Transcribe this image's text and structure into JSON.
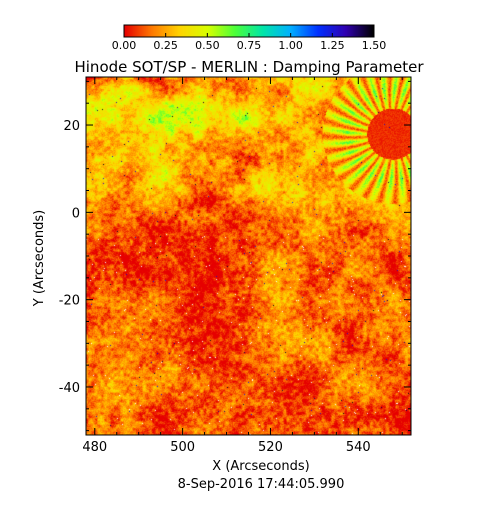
{
  "chart_data": {
    "type": "heatmap",
    "title": "Hinode SOT/SP - MERLIN : Damping Parameter",
    "xlabel": "X (Arcseconds)",
    "ylabel": "Y (Arcseconds)",
    "subtitle": "8-Sep-2016 17:44:05.990",
    "xlim": [
      478,
      552
    ],
    "ylim": [
      -51,
      31
    ],
    "xticks": [
      480,
      500,
      520,
      540
    ],
    "yticks": [
      -40,
      -20,
      0,
      20
    ],
    "colorbar": {
      "range": [
        0.0,
        1.5
      ],
      "ticks": [
        "0.00",
        "0.25",
        "0.50",
        "0.75",
        "1.00",
        "1.25",
        "1.50"
      ],
      "placement": "top",
      "colormap": [
        "#e60000",
        "#ff7a00",
        "#ffd400",
        "#d8ff00",
        "#4cff3a",
        "#00e6a8",
        "#00b0ff",
        "#0030ff",
        "#3000b0",
        "#000000"
      ]
    },
    "value_distribution": {
      "background_mean": 0.12,
      "network_mean": 0.38,
      "sunspot_center": [
        548,
        18
      ],
      "sunspot_radius": 13
    }
  }
}
